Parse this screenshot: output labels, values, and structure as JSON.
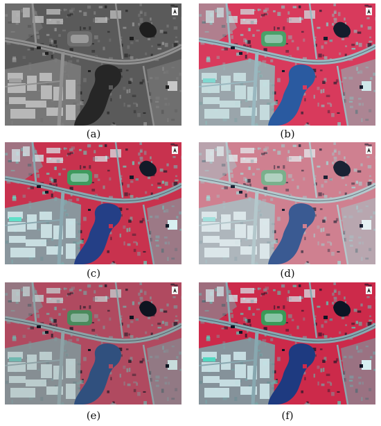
{
  "panels": [
    {
      "label": "(a)",
      "palette": "pan"
    },
    {
      "label": "(b)",
      "palette": "fc_blur"
    },
    {
      "label": "(c)",
      "palette": "fc_sharp"
    },
    {
      "label": "(d)",
      "palette": "fc_faded"
    },
    {
      "label": "(e)",
      "palette": "fc_dark"
    },
    {
      "label": "(f)",
      "palette": "fc_vivid"
    }
  ],
  "palettes": {
    "pan": {
      "veg": "#5a5a5a",
      "urban": "#7d7d7d",
      "roof": "#c8c8c8",
      "water": "#262626",
      "road": "#909090",
      "dark": "#1e1e1e",
      "cyan": "#a0a0a0",
      "field": "#6e6e6e"
    },
    "fc_blur": {
      "veg": "#d83a5c",
      "urban": "#8fb8b8",
      "roof": "#cfe8ea",
      "water": "#2a5aa0",
      "road": "#9ab8c0",
      "dark": "#141c2c",
      "cyan": "#7fd8d0",
      "field": "#4aa068"
    },
    "fc_sharp": {
      "veg": "#c8324e",
      "urban": "#7fa8ac",
      "roof": "#d8f0f2",
      "water": "#243f86",
      "road": "#8aa8b0",
      "dark": "#121a28",
      "cyan": "#5fe0c8",
      "field": "#3f9a5e"
    },
    "fc_faded": {
      "veg": "#cf8090",
      "urban": "#a8c0c4",
      "roof": "#e6f2f4",
      "water": "#3a5a92",
      "road": "#b4c8cc",
      "dark": "#1a2234",
      "cyan": "#a0e0dc",
      "field": "#7ab08c"
    },
    "fc_dark": {
      "veg": "#b04a60",
      "urban": "#7f9a9c",
      "roof": "#c8dcdc",
      "water": "#30507e",
      "road": "#8ea2a6",
      "dark": "#0e1420",
      "cyan": "#70b8b0",
      "field": "#4a8a5c"
    },
    "fc_vivid": {
      "veg": "#cc2a4a",
      "urban": "#78a4a8",
      "roof": "#d6f0f2",
      "water": "#1e3a80",
      "road": "#88a8b0",
      "dark": "#0c1424",
      "cyan": "#50d8c0",
      "field": "#3a9a58"
    }
  }
}
